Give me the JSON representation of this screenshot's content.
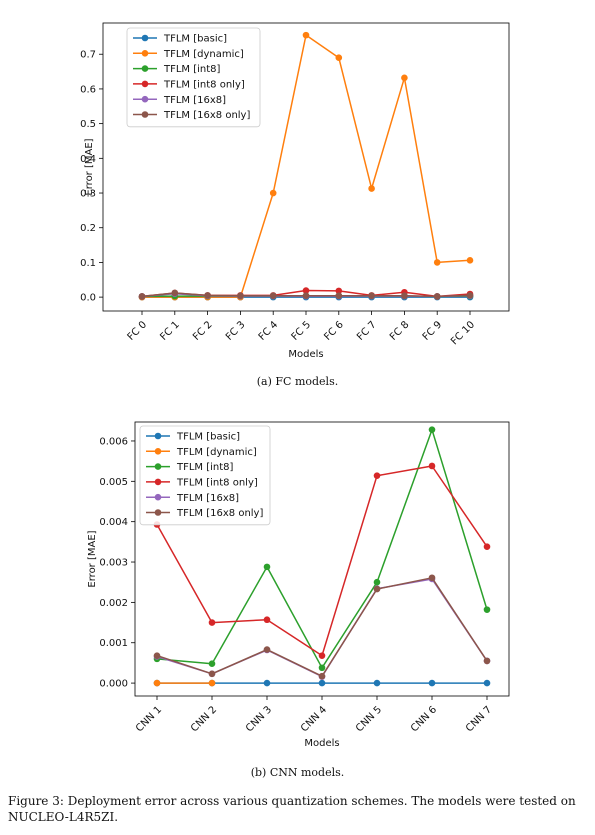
{
  "chart_data": [
    {
      "type": "line",
      "categories": [
        "FC 0",
        "FC 1",
        "FC 2",
        "FC 3",
        "FC 4",
        "FC 5",
        "FC 6",
        "FC 7",
        "FC 8",
        "FC 9",
        "FC 10"
      ],
      "xlabel": "Models",
      "ylabel": "Error [MAE]",
      "ylim": [
        -0.04,
        0.79
      ],
      "yticks": [
        0.0,
        0.1,
        0.2,
        0.3,
        0.4,
        0.5,
        0.6,
        0.7
      ],
      "ytick_labels": [
        "0.0",
        "0.1",
        "0.2",
        "0.3",
        "0.4",
        "0.5",
        "0.6",
        "0.7"
      ],
      "legend": "top-left",
      "series": [
        {
          "name": "TFLM [basic]",
          "color": "#1f77b4",
          "values": [
            0,
            0,
            0,
            0,
            0,
            0,
            0,
            0,
            0,
            0,
            0
          ]
        },
        {
          "name": "TFLM [dynamic]",
          "color": "#ff7f0e",
          "values": [
            0,
            0,
            0,
            0,
            0.3,
            0.755,
            0.69,
            0.313,
            0.632,
            0.1,
            0.106
          ]
        },
        {
          "name": "TFLM [int8]",
          "color": "#2ca02c",
          "values": [
            0.002,
            0.003,
            0.003,
            0.003,
            0.003,
            0.004,
            0.004,
            0.003,
            0.003,
            0.002,
            0.003
          ]
        },
        {
          "name": "TFLM [int8 only]",
          "color": "#d62728",
          "values": [
            0.002,
            0.012,
            0.005,
            0.005,
            0.005,
            0.019,
            0.018,
            0.005,
            0.014,
            0.002,
            0.009
          ]
        },
        {
          "name": "TFLM [16x8]",
          "color": "#9467bd",
          "values": [
            0.002,
            0.01,
            0.004,
            0.003,
            0.003,
            0.003,
            0.003,
            0.003,
            0.003,
            0.002,
            0.004
          ]
        },
        {
          "name": "TFLM [16x8 only]",
          "color": "#8c564b",
          "values": [
            0.002,
            0.012,
            0.005,
            0.004,
            0.004,
            0.004,
            0.004,
            0.004,
            0.004,
            0.002,
            0.005
          ]
        }
      ]
    },
    {
      "type": "line",
      "categories": [
        "CNN 1",
        "CNN 2",
        "CNN 3",
        "CNN 4",
        "CNN 5",
        "CNN 6",
        "CNN 7"
      ],
      "xlabel": "Models",
      "ylabel": "Error [MAE]",
      "ylim": [
        -0.00032,
        0.00647
      ],
      "yticks": [
        0,
        0.001,
        0.002,
        0.003,
        0.004,
        0.005,
        0.006
      ],
      "ytick_labels": [
        "0.000",
        "0.001",
        "0.002",
        "0.003",
        "0.004",
        "0.005",
        "0.006"
      ],
      "legend": "top-left",
      "series": [
        {
          "name": "TFLM [basic]",
          "color": "#1f77b4",
          "values": [
            0,
            0,
            0,
            0,
            0,
            0,
            0
          ]
        },
        {
          "name": "TFLM [dynamic]",
          "color": "#ff7f0e",
          "values": [
            0,
            0,
            null,
            null,
            null,
            null,
            null
          ]
        },
        {
          "name": "TFLM [int8]",
          "color": "#2ca02c",
          "values": [
            0.0006,
            0.00048,
            0.00288,
            0.00038,
            0.0025,
            0.00628,
            0.00182
          ]
        },
        {
          "name": "TFLM [int8 only]",
          "color": "#d62728",
          "values": [
            0.00393,
            0.0015,
            0.00157,
            0.00068,
            0.00514,
            0.00538,
            0.00338
          ]
        },
        {
          "name": "TFLM [16x8]",
          "color": "#9467bd",
          "values": [
            0.00066,
            0.00023,
            0.00082,
            0.00016,
            0.00234,
            0.00258,
            0.00055
          ]
        },
        {
          "name": "TFLM [16x8 only]",
          "color": "#8c564b",
          "values": [
            0.00068,
            0.00023,
            0.00083,
            0.00017,
            0.00233,
            0.00261,
            0.00055
          ]
        }
      ]
    }
  ],
  "captions": {
    "fc": "(a) FC models.",
    "cnn": "(b) CNN models.",
    "figure": "Figure 3: Deployment error across various quantization schemes. The models were tested on NUCLEO-L4R5ZI."
  }
}
